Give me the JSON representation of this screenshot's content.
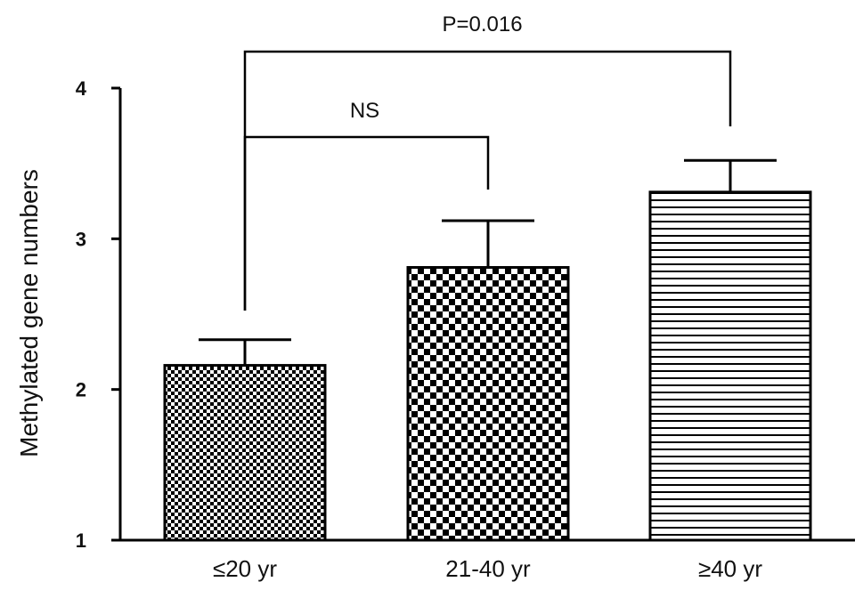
{
  "chart_data": {
    "type": "bar",
    "title": "",
    "xlabel": "",
    "ylabel": "Methylated gene numbers",
    "ylim": [
      1,
      4
    ],
    "yticks": [
      1,
      2,
      3,
      4
    ],
    "categories": [
      "≤20 yr",
      "21-40 yr",
      "≥40 yr"
    ],
    "values": [
      2.16,
      2.81,
      3.31
    ],
    "errors": [
      0.17,
      0.31,
      0.21
    ],
    "bar_patterns": [
      "fine-checker",
      "coarse-checker",
      "horizontal-lines"
    ],
    "grid": false,
    "legend": "none",
    "annotations": [
      {
        "text": "NS",
        "from": "≤20 yr",
        "to": "21-40 yr"
      },
      {
        "text": "P=0.016",
        "from": "≤20 yr",
        "to": "≥40 yr"
      }
    ]
  }
}
